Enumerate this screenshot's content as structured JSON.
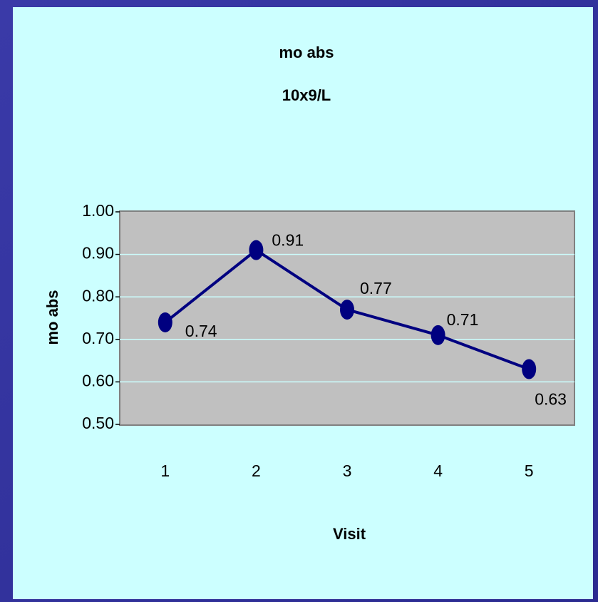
{
  "chart_data": {
    "type": "line",
    "title": "mo abs",
    "subtitle": "10x9/L",
    "x_label": "Visit",
    "y_label": "mo abs",
    "categories": [
      "1",
      "2",
      "3",
      "4",
      "5"
    ],
    "series": [
      {
        "name": "mo abs",
        "color": "#000080",
        "values": [
          0.74,
          0.91,
          0.77,
          0.71,
          0.63
        ]
      }
    ],
    "ylim": [
      0.5,
      1.0
    ],
    "yticks": [
      {
        "value": 0.5,
        "label": "0.50"
      },
      {
        "value": 0.6,
        "label": "0.60"
      },
      {
        "value": 0.7,
        "label": "0.70"
      },
      {
        "value": 0.8,
        "label": "0.80"
      },
      {
        "value": 0.9,
        "label": "0.90"
      },
      {
        "value": 1.0,
        "label": "1.00"
      }
    ],
    "grid": true
  }
}
